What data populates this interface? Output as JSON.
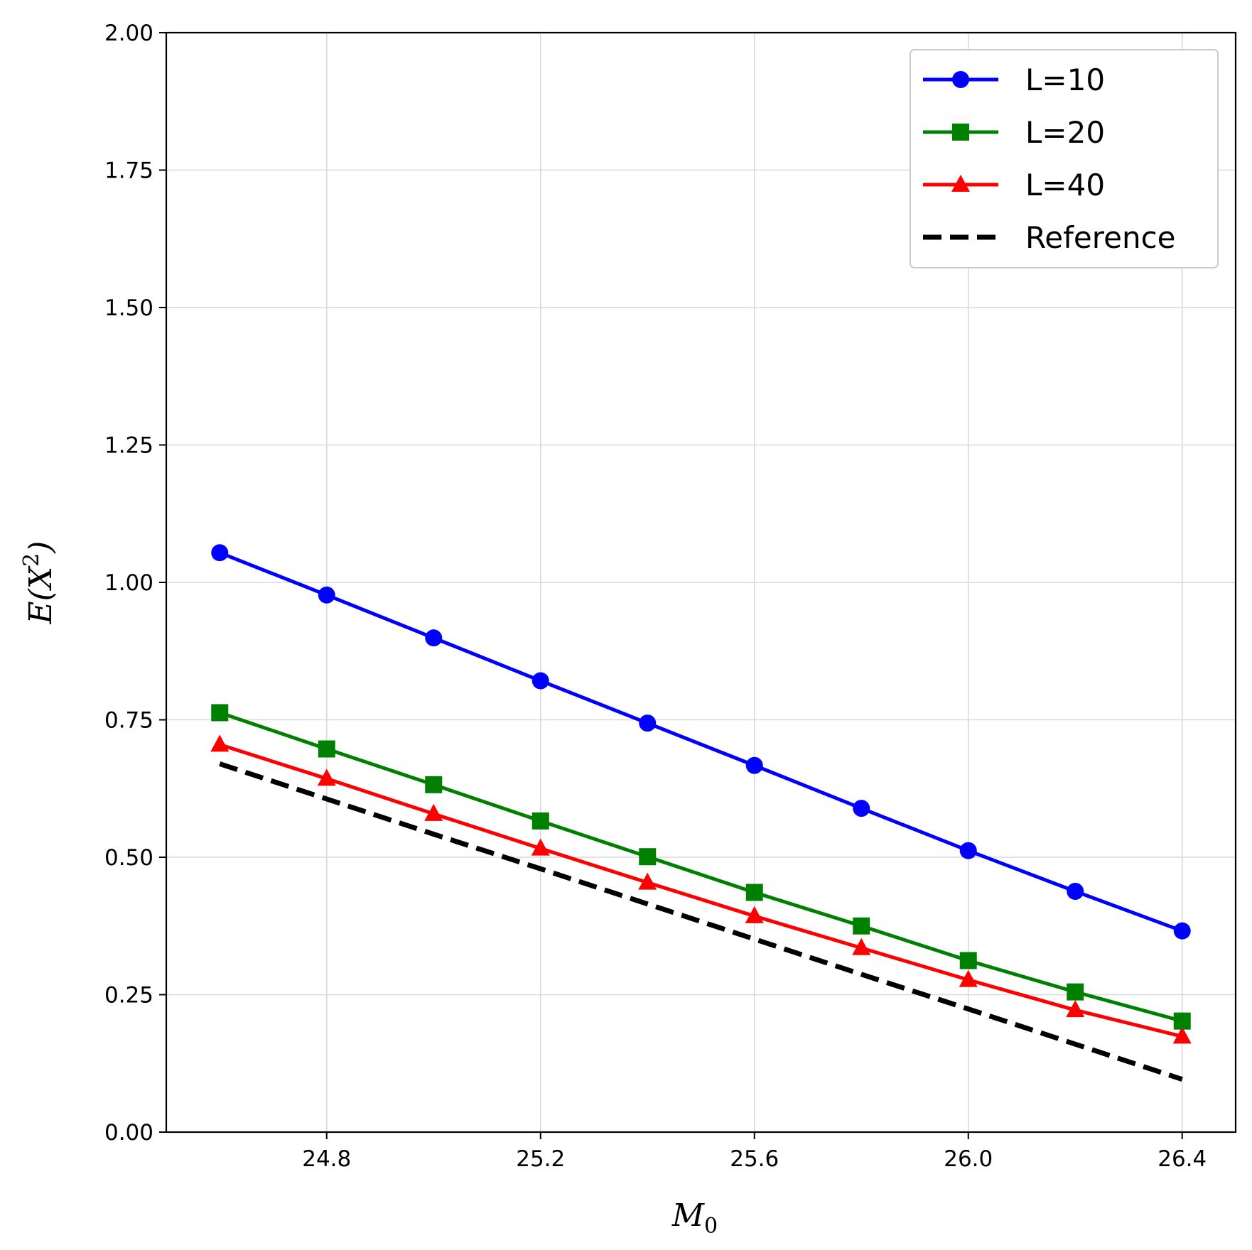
{
  "chart_data": {
    "type": "line",
    "xlabel": "M",
    "xlabel_sub": "0",
    "ylabel": "E(X",
    "ylabel_sup": "2",
    "ylabel_close": ")",
    "xlim": [
      24.5,
      26.5
    ],
    "ylim": [
      0.0,
      2.0
    ],
    "xticks": [
      "24.8",
      "25.2",
      "25.6",
      "26.0",
      "26.4"
    ],
    "yticks": [
      "0.00",
      "0.25",
      "0.50",
      "0.75",
      "1.00",
      "1.25",
      "1.50",
      "1.75",
      "2.00"
    ],
    "grid": true,
    "legend_position": "top-right",
    "x": [
      24.6,
      24.8,
      25.0,
      25.2,
      25.4,
      25.6,
      25.8,
      26.0,
      26.2,
      26.4
    ],
    "series": [
      {
        "name": "L=10",
        "color": "#0000ff",
        "marker": "circle",
        "line": "solid",
        "values": [
          1.054,
          0.977,
          0.899,
          0.821,
          0.744,
          0.667,
          0.589,
          0.512,
          0.438,
          0.366
        ]
      },
      {
        "name": "L=20",
        "color": "#008000",
        "marker": "square",
        "line": "solid",
        "values": [
          0.763,
          0.697,
          0.632,
          0.566,
          0.501,
          0.436,
          0.375,
          0.312,
          0.255,
          0.202
        ]
      },
      {
        "name": "L=40",
        "color": "#ff0000",
        "marker": "triangle",
        "line": "solid",
        "values": [
          0.705,
          0.643,
          0.579,
          0.516,
          0.454,
          0.393,
          0.335,
          0.277,
          0.222,
          0.174
        ]
      },
      {
        "name": "Reference",
        "color": "#000000",
        "marker": "none",
        "line": "dashed",
        "values": [
          0.67,
          0.606,
          0.542,
          0.479,
          0.415,
          0.351,
          0.287,
          0.224,
          0.16,
          0.096
        ]
      }
    ]
  }
}
